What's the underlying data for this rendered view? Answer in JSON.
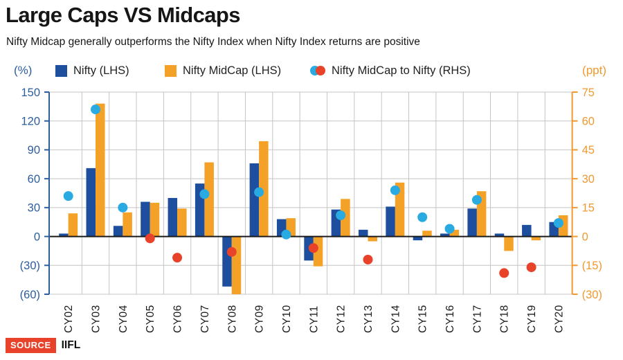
{
  "header": {
    "title": "Large Caps VS Midcaps",
    "subtitle": "Nifty Midcap generally outperforms the Nifty Index when Nifty Index returns are positive"
  },
  "legend": {
    "left_unit": "(%)",
    "right_unit": "(ppt)",
    "items": [
      {
        "label": "Nifty (LHS)",
        "swatch": "square"
      },
      {
        "label": "Nifty MidCap (LHS)",
        "swatch": "square"
      },
      {
        "label": "Nifty MidCap to Nifty (RHS)",
        "swatch": "dot-pair"
      }
    ]
  },
  "footer": {
    "source_label": "SOURCE",
    "source_name": "IIFL"
  },
  "colors": {
    "nifty_bar": "#1d4f9e",
    "midcap_bar": "#f4a227",
    "diff_dot_positive": "#29abe2",
    "diff_dot_negative": "#e8432a",
    "left_axis": "#2b5d9e",
    "right_axis": "#f0992f",
    "grid": "#c4c4c4",
    "zero_line": "#1a1a1a",
    "x_label": "#1a1a1a",
    "source_badge_bg": "#e8432a"
  },
  "chart_data": {
    "type": "bar",
    "title": "Large Caps VS Midcaps",
    "categories": [
      "CY02",
      "CY03",
      "CY04",
      "CY05",
      "CY06",
      "CY07",
      "CY08",
      "CY09",
      "CY10",
      "CY11",
      "CY12",
      "CY13",
      "CY14",
      "CY15",
      "CY16",
      "CY17",
      "CY18",
      "CY19",
      "CY20"
    ],
    "series": [
      {
        "name": "Nifty (LHS)",
        "type": "bar",
        "axis": "left",
        "values": [
          3,
          71,
          11,
          36,
          40,
          55,
          -52,
          76,
          18,
          -25,
          28,
          7,
          31,
          -4,
          3,
          29,
          3,
          12,
          15
        ]
      },
      {
        "name": "Nifty MidCap (LHS)",
        "type": "bar",
        "axis": "left",
        "values": [
          24,
          138,
          25,
          35,
          29,
          77,
          -60,
          99,
          19,
          -31,
          39,
          -5,
          56,
          6,
          7,
          47,
          -15,
          -4,
          22
        ]
      },
      {
        "name": "Nifty MidCap to Nifty (RHS)",
        "type": "scatter",
        "axis": "right",
        "values": [
          21,
          66,
          15,
          -1,
          -11,
          22,
          -8,
          23,
          1,
          -6,
          11,
          -12,
          24,
          10,
          4,
          19,
          -19,
          -16,
          7
        ]
      }
    ],
    "left_axis": {
      "unit": "(%)",
      "range": [
        -60,
        150
      ],
      "ticks": [
        150,
        120,
        90,
        60,
        30,
        0,
        -30,
        -60
      ],
      "tick_labels": [
        "150",
        "120",
        "90",
        "60",
        "30",
        "0",
        "(30)",
        "(60)"
      ]
    },
    "right_axis": {
      "unit": "(ppt)",
      "range": [
        -30,
        75
      ],
      "ticks": [
        75,
        60,
        45,
        30,
        15,
        0,
        -15,
        -30
      ],
      "tick_labels": [
        "75",
        "60",
        "45",
        "30",
        "15",
        "0",
        "(15)",
        "(30)"
      ]
    },
    "grid": true,
    "legend_position": "top"
  }
}
